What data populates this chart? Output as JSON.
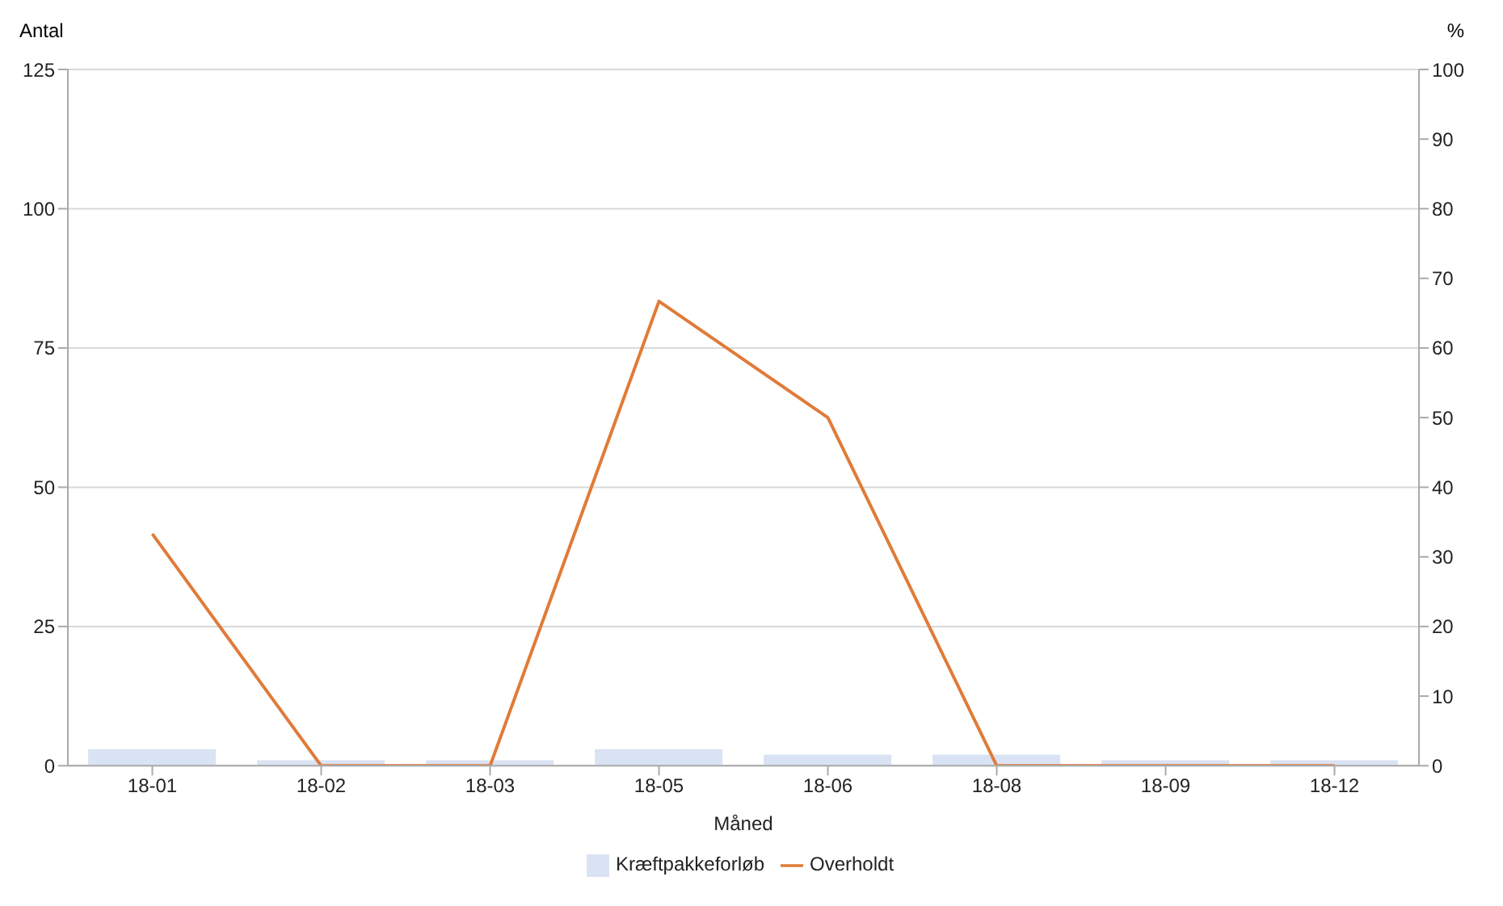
{
  "chart_data": {
    "type": "bar",
    "xlabel": "Måned",
    "ylabel": "Antal",
    "y2label": "%",
    "categories": [
      "18-01",
      "18-02",
      "18-03",
      "18-05",
      "18-06",
      "18-08",
      "18-09",
      "18-12"
    ],
    "series": [
      {
        "name": "Kræftpakkeforløb",
        "color": "#dae3f3",
        "values": [
          3,
          1,
          1,
          3,
          2,
          2,
          1,
          1
        ]
      },
      {
        "name": "Overholdt",
        "type": "line",
        "axis": "y2",
        "color": "#e07b39",
        "values": [
          33.3,
          0,
          0,
          66.7,
          50,
          0,
          0,
          0
        ]
      }
    ],
    "ylim": [
      0,
      125
    ],
    "yticks": [
      0,
      25,
      50,
      75,
      100,
      125
    ],
    "y2lim": [
      0,
      100
    ],
    "y2ticks": [
      0,
      10,
      20,
      30,
      40,
      50,
      60,
      70,
      80,
      90,
      100
    ],
    "grid": "y",
    "legend": "bottom",
    "marker": "none",
    "line_style": "solid"
  }
}
